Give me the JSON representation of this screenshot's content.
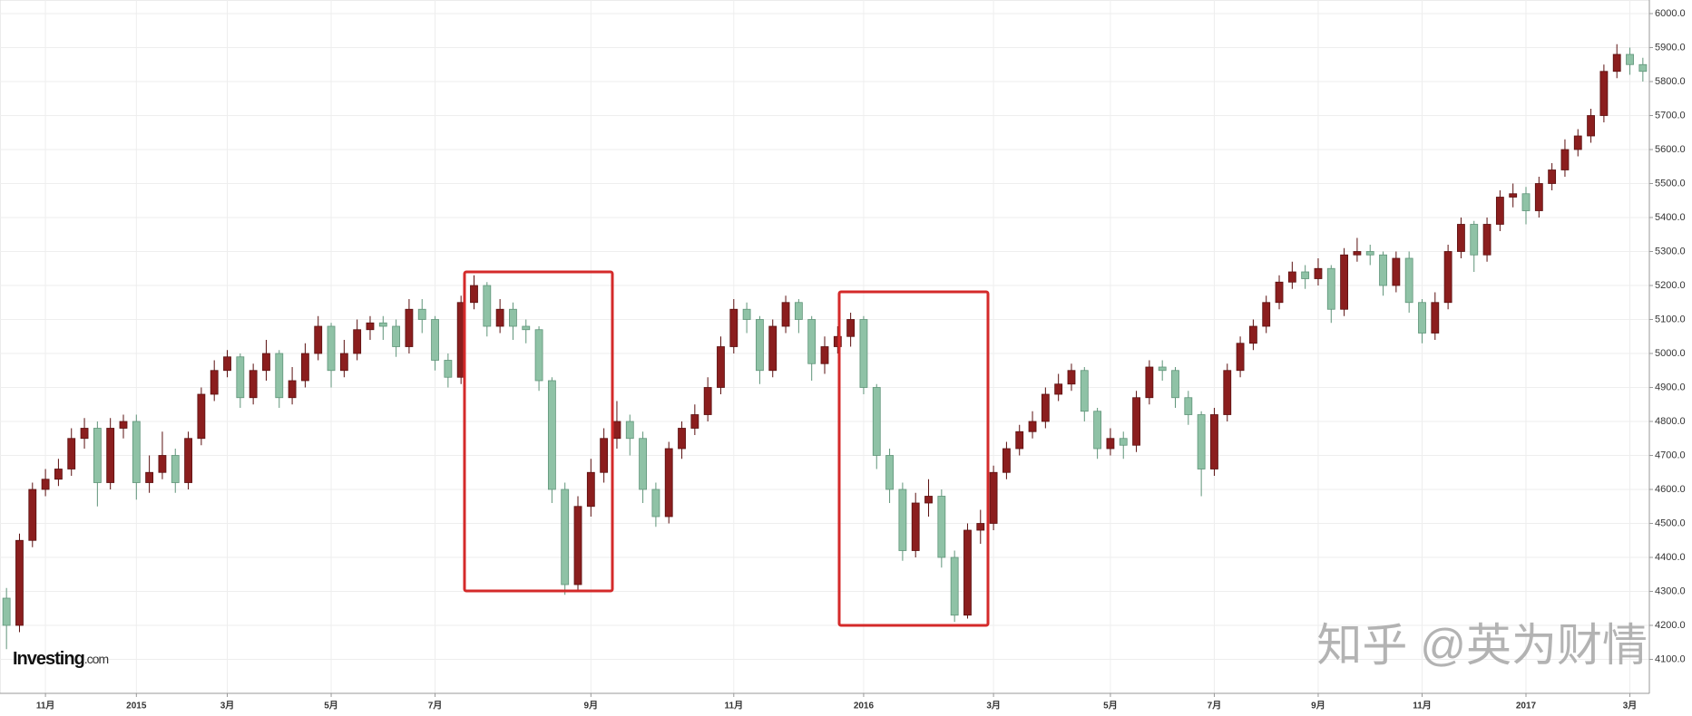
{
  "chart_data": {
    "type": "candlestick",
    "categories": [
      null,
      null,
      null,
      "11月",
      null,
      null,
      null,
      null,
      null,
      null,
      "2015",
      null,
      null,
      null,
      null,
      null,
      null,
      "3月",
      null,
      null,
      null,
      null,
      null,
      null,
      null,
      "5月",
      null,
      null,
      null,
      null,
      null,
      null,
      null,
      "7月",
      null,
      null,
      null,
      null,
      null,
      null,
      null,
      null,
      null,
      null,
      null,
      "9月",
      null,
      null,
      null,
      null,
      null,
      null,
      null,
      null,
      null,
      null,
      "11月",
      null,
      null,
      null,
      null,
      null,
      null,
      null,
      null,
      null,
      "2016",
      null,
      null,
      null,
      null,
      null,
      null,
      null,
      null,
      null,
      "3月",
      null,
      null,
      null,
      null,
      null,
      null,
      null,
      null,
      "5月",
      null,
      null,
      null,
      null,
      null,
      null,
      null,
      "7月",
      null,
      null,
      null,
      null,
      null,
      null,
      null,
      "9月",
      null,
      null,
      null,
      null,
      null,
      null,
      null,
      "11月",
      null,
      null,
      null,
      null,
      null,
      null,
      null,
      "2017",
      null,
      null,
      null,
      null,
      null,
      null,
      null,
      "3月",
      null
    ],
    "open": [
      4280,
      4200,
      4450,
      4600,
      4630,
      4660,
      4750,
      4780,
      4620,
      4780,
      4800,
      4620,
      4650,
      4700,
      4620,
      4750,
      4880,
      4950,
      4990,
      4870,
      4950,
      5000,
      4870,
      4920,
      5000,
      5080,
      4950,
      5000,
      5070,
      5090,
      5080,
      5020,
      5130,
      5100,
      4980,
      4930,
      5150,
      5200,
      5080,
      5130,
      5080,
      5070,
      4920,
      4600,
      4320,
      4550,
      4650,
      4750,
      4800,
      4750,
      4600,
      4520,
      4720,
      4780,
      4820,
      4900,
      5020,
      5130,
      5100,
      4950,
      5080,
      5150,
      5100,
      4970,
      5020,
      5050,
      5100,
      4900,
      4700,
      4600,
      4420,
      4560,
      4580,
      4400,
      4230,
      4480,
      4500,
      4650,
      4720,
      4770,
      4800,
      4880,
      4910,
      4950,
      4830,
      4720,
      4750,
      4730,
      4870,
      4960,
      4950,
      4870,
      4820,
      4660,
      4820,
      4950,
      5030,
      5080,
      5150,
      5210,
      5240,
      5220,
      5250,
      5130,
      5290,
      5300,
      5290,
      5200,
      5280,
      5150,
      5060,
      5150,
      5300,
      5380,
      5290,
      5380,
      5460,
      5470,
      5420,
      5500,
      5540,
      5600,
      5640,
      5700,
      5830,
      5880,
      5850
    ],
    "high": [
      4310,
      4470,
      4620,
      4660,
      4690,
      4780,
      4810,
      4800,
      4810,
      4820,
      4820,
      4700,
      4770,
      4720,
      4770,
      4900,
      4980,
      5010,
      5000,
      4970,
      5040,
      5010,
      4960,
      5030,
      5110,
      5090,
      5040,
      5100,
      5110,
      5110,
      5100,
      5160,
      5160,
      5110,
      5000,
      5170,
      5230,
      5210,
      5160,
      5150,
      5100,
      5080,
      4930,
      4620,
      4580,
      4690,
      4780,
      4860,
      4820,
      4770,
      4620,
      4740,
      4800,
      4850,
      4930,
      5050,
      5160,
      5150,
      5110,
      5100,
      5170,
      5160,
      5110,
      5050,
      5080,
      5120,
      5110,
      4910,
      4720,
      4620,
      4590,
      4630,
      4600,
      4420,
      4500,
      4540,
      4670,
      4740,
      4790,
      4830,
      4900,
      4940,
      4970,
      4960,
      4840,
      4780,
      4770,
      4890,
      4980,
      4980,
      4960,
      4890,
      4830,
      4840,
      4970,
      5050,
      5100,
      5170,
      5230,
      5270,
      5260,
      5280,
      5260,
      5310,
      5340,
      5320,
      5300,
      5300,
      5300,
      5160,
      5180,
      5320,
      5400,
      5390,
      5400,
      5480,
      5500,
      5490,
      5520,
      5560,
      5630,
      5660,
      5720,
      5850,
      5910,
      5900,
      5870
    ],
    "low": [
      4130,
      4180,
      4430,
      4580,
      4610,
      4640,
      4720,
      4550,
      4600,
      4750,
      4570,
      4590,
      4630,
      4590,
      4600,
      4730,
      4860,
      4930,
      4840,
      4850,
      4920,
      4840,
      4850,
      4900,
      4980,
      4900,
      4930,
      4980,
      5040,
      5040,
      4990,
      5000,
      5060,
      4950,
      4900,
      4910,
      5130,
      5050,
      5060,
      5040,
      5030,
      4890,
      4560,
      4290,
      4300,
      4520,
      4620,
      4720,
      4700,
      4560,
      4490,
      4500,
      4690,
      4760,
      4800,
      4880,
      5000,
      5060,
      4910,
      4930,
      5060,
      5060,
      4920,
      4940,
      5000,
      5020,
      4880,
      4660,
      4560,
      4390,
      4400,
      4520,
      4370,
      4210,
      4220,
      4440,
      4480,
      4630,
      4700,
      4750,
      4780,
      4860,
      4890,
      4800,
      4690,
      4700,
      4690,
      4710,
      4850,
      4920,
      4840,
      4790,
      4580,
      4640,
      4800,
      4930,
      5010,
      5060,
      5130,
      5190,
      5190,
      5200,
      5090,
      5110,
      5270,
      5260,
      5170,
      5180,
      5120,
      5030,
      5040,
      5130,
      5280,
      5240,
      5270,
      5360,
      5430,
      5380,
      5400,
      5480,
      5520,
      5580,
      5620,
      5680,
      5810,
      5820,
      5800
    ],
    "close": [
      4200,
      4450,
      4600,
      4630,
      4660,
      4750,
      4780,
      4620,
      4780,
      4800,
      4620,
      4650,
      4700,
      4620,
      4750,
      4880,
      4950,
      4990,
      4870,
      4950,
      5000,
      4870,
      4920,
      5000,
      5080,
      4950,
      5000,
      5070,
      5090,
      5080,
      5020,
      5130,
      5100,
      4980,
      4930,
      5150,
      5200,
      5080,
      5130,
      5080,
      5070,
      4920,
      4600,
      4320,
      4550,
      4650,
      4750,
      4800,
      4750,
      4600,
      4520,
      4720,
      4780,
      4820,
      4900,
      5020,
      5130,
      5100,
      4950,
      5080,
      5150,
      5100,
      4970,
      5020,
      5050,
      5100,
      4900,
      4700,
      4600,
      4420,
      4560,
      4580,
      4400,
      4230,
      4480,
      4500,
      4650,
      4720,
      4770,
      4800,
      4880,
      4910,
      4950,
      4830,
      4720,
      4750,
      4730,
      4870,
      4960,
      4950,
      4870,
      4820,
      4660,
      4820,
      4950,
      5030,
      5080,
      5150,
      5210,
      5240,
      5220,
      5250,
      5130,
      5290,
      5300,
      5290,
      5200,
      5280,
      5150,
      5060,
      5150,
      5300,
      5380,
      5290,
      5380,
      5460,
      5470,
      5420,
      5500,
      5540,
      5600,
      5640,
      5700,
      5830,
      5880,
      5850,
      5830
    ],
    "up_color": "#8b1e1e",
    "down_color": "#8fc2a6",
    "ylim": [
      4000,
      6040
    ],
    "yticks": [
      {
        "value": 4100,
        "label": "4100.0"
      },
      {
        "value": 4200,
        "label": "4200.0"
      },
      {
        "value": 4300,
        "label": "4300.0"
      },
      {
        "value": 4400,
        "label": "4400.0"
      },
      {
        "value": 4500,
        "label": "4500.0"
      },
      {
        "value": 4600,
        "label": "4600.0"
      },
      {
        "value": 4700,
        "label": "4700.0"
      },
      {
        "value": 4800,
        "label": "4800.0"
      },
      {
        "value": 4900,
        "label": "4900.0"
      },
      {
        "value": 5000,
        "label": "5000.0"
      },
      {
        "value": 5100,
        "label": "5100.0"
      },
      {
        "value": 5200,
        "label": "5200.0"
      },
      {
        "value": 5300,
        "label": "5300.0"
      },
      {
        "value": 5400,
        "label": "5400.0"
      },
      {
        "value": 5500,
        "label": "5500.0"
      },
      {
        "value": 5600,
        "label": "5600.0"
      },
      {
        "value": 5700,
        "label": "5700.0"
      },
      {
        "value": 5800,
        "label": "5800.0"
      },
      {
        "value": 5900,
        "label": "5900.0"
      },
      {
        "value": 6000,
        "label": "6000.0"
      }
    ],
    "grid": true,
    "logo": "Investing",
    "logo_suffix": ".com",
    "watermark": "知乎 @英为财情"
  }
}
